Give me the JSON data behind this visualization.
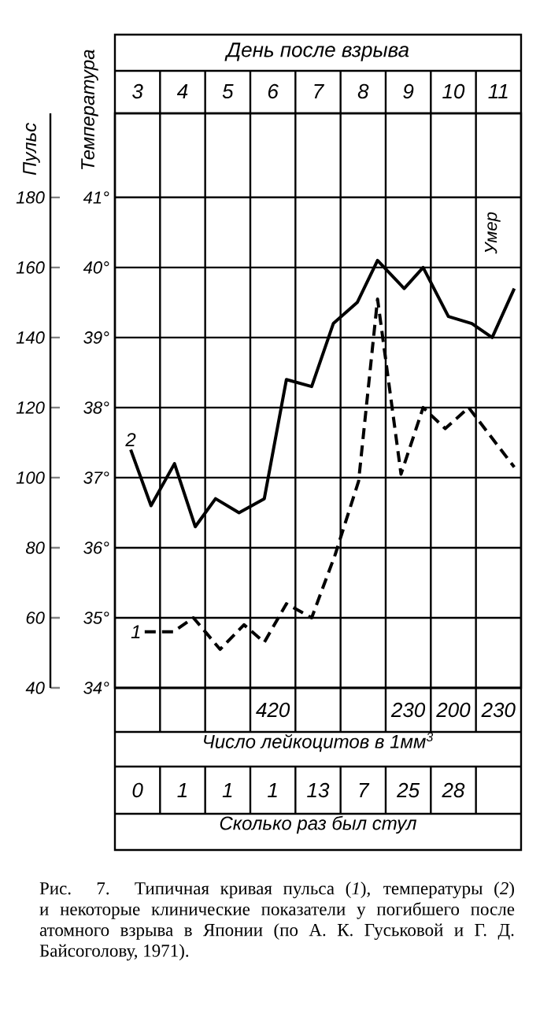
{
  "chart_data": [
    {
      "type": "line",
      "xlabel": "День после взрыва",
      "ylabel": "Пульс",
      "y2label": "Температура",
      "xlim": [
        2.5,
        11.5
      ],
      "xticks": [
        3,
        4,
        5,
        6,
        7,
        8,
        9,
        10,
        11
      ],
      "ylim": [
        40,
        204
      ],
      "yticks": [
        40,
        60,
        80,
        100,
        120,
        140,
        160,
        180
      ],
      "y2lim": [
        34,
        42.2
      ],
      "y2ticks": [
        {
          "value": 34,
          "label": "34°"
        },
        {
          "value": 35,
          "label": "35°"
        },
        {
          "value": 36,
          "label": "36°"
        },
        {
          "value": 37,
          "label": "37°"
        },
        {
          "value": 38,
          "label": "38°"
        },
        {
          "value": 39,
          "label": "39°"
        },
        {
          "value": 40,
          "label": "40°"
        },
        {
          "value": 41,
          "label": "41°"
        }
      ],
      "grid": "y",
      "series": [
        {
          "name": "1",
          "color": "#000000",
          "line_style": "dashed",
          "x": [
            3.16,
            3.79,
            4.24,
            4.83,
            5.36,
            5.81,
            6.3,
            6.86,
            7.38,
            7.9,
            8.32,
            8.84,
            9.33,
            9.82,
            10.34,
            11.35
          ],
          "values": [
            56,
            56,
            60,
            51,
            58,
            53,
            64,
            60,
            78,
            99,
            151,
            101,
            120,
            114,
            120,
            103
          ]
        },
        {
          "name": "2",
          "color": "#000000",
          "line_style": "solid",
          "axis": "y2",
          "x": [
            2.85,
            3.3,
            3.82,
            4.28,
            4.73,
            5.25,
            5.81,
            6.3,
            6.86,
            7.34,
            7.87,
            8.32,
            8.91,
            9.33,
            9.89,
            10.41,
            10.86,
            11.35
          ],
          "values": [
            37.4,
            36.6,
            37.2,
            36.3,
            36.7,
            36.5,
            36.7,
            38.4,
            38.3,
            39.2,
            39.5,
            40.1,
            39.7,
            40.0,
            39.3,
            39.2,
            39.0,
            39.7
          ]
        }
      ],
      "annotations": [
        "Умер",
        "Рис. 7. Типичная кривая пульса (*1*), температуры (*2*) и некоторые клинические показатели у погибшего после атомного взрыва в Японии (по А. К. Гуськовой и Г. Д. Байсоголову, 1971)."
      ]
    },
    {
      "type": "other",
      "title": "Число лейкоцитов в 1мм$^{3}$",
      "categories": [
        null,
        null,
        null,
        null,
        null,
        null,
        null,
        null,
        null
      ],
      "values": [
        null,
        null,
        null,
        420,
        null,
        null,
        230,
        200,
        230
      ],
      "data_labels": true
    },
    {
      "type": "other",
      "title": "Сколько раз был стул",
      "categories": [
        null,
        null,
        null,
        null,
        null,
        null,
        null,
        null,
        null
      ],
      "values": [
        0,
        1,
        1,
        1,
        13,
        7,
        25,
        28,
        null
      ],
      "data_labels": true
    }
  ]
}
